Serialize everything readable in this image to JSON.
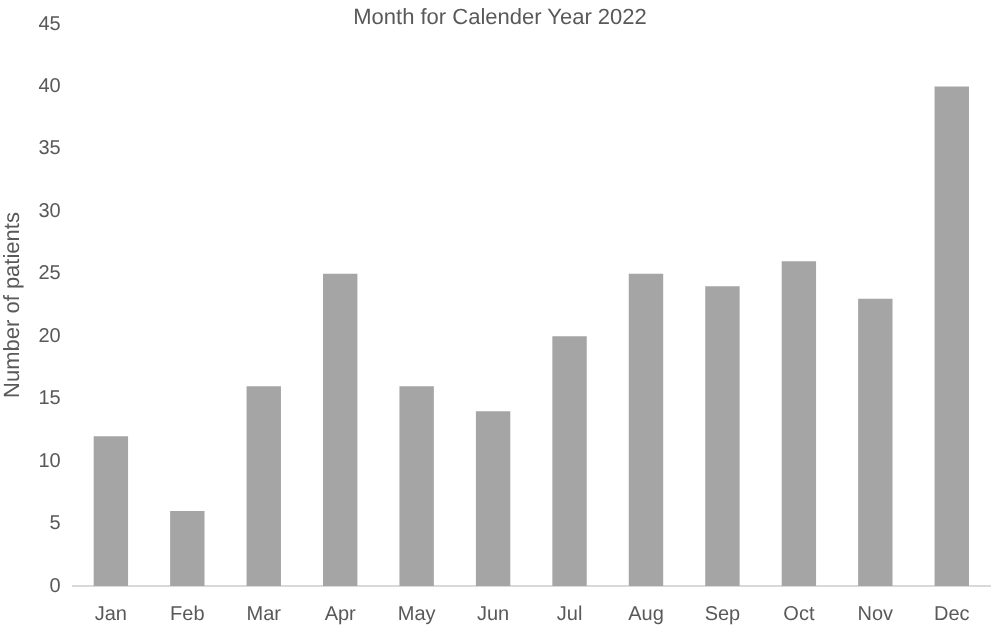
{
  "chart_data": {
    "type": "bar",
    "xlabel": "Month for Calender Year 2022",
    "ylabel": "Number of patients",
    "categories": [
      "Jan",
      "Feb",
      "Mar",
      "Apr",
      "May",
      "Jun",
      "Jul",
      "Aug",
      "Sep",
      "Oct",
      "Nov",
      "Dec"
    ],
    "values": [
      12,
      6,
      16,
      25,
      16,
      14,
      20,
      25,
      24,
      26,
      23,
      40
    ],
    "color": "#a5a5a5",
    "ylim": [
      0,
      45
    ],
    "yticks": [
      0,
      5,
      10,
      15,
      20,
      25,
      30,
      35,
      40,
      45
    ],
    "grid": false
  }
}
